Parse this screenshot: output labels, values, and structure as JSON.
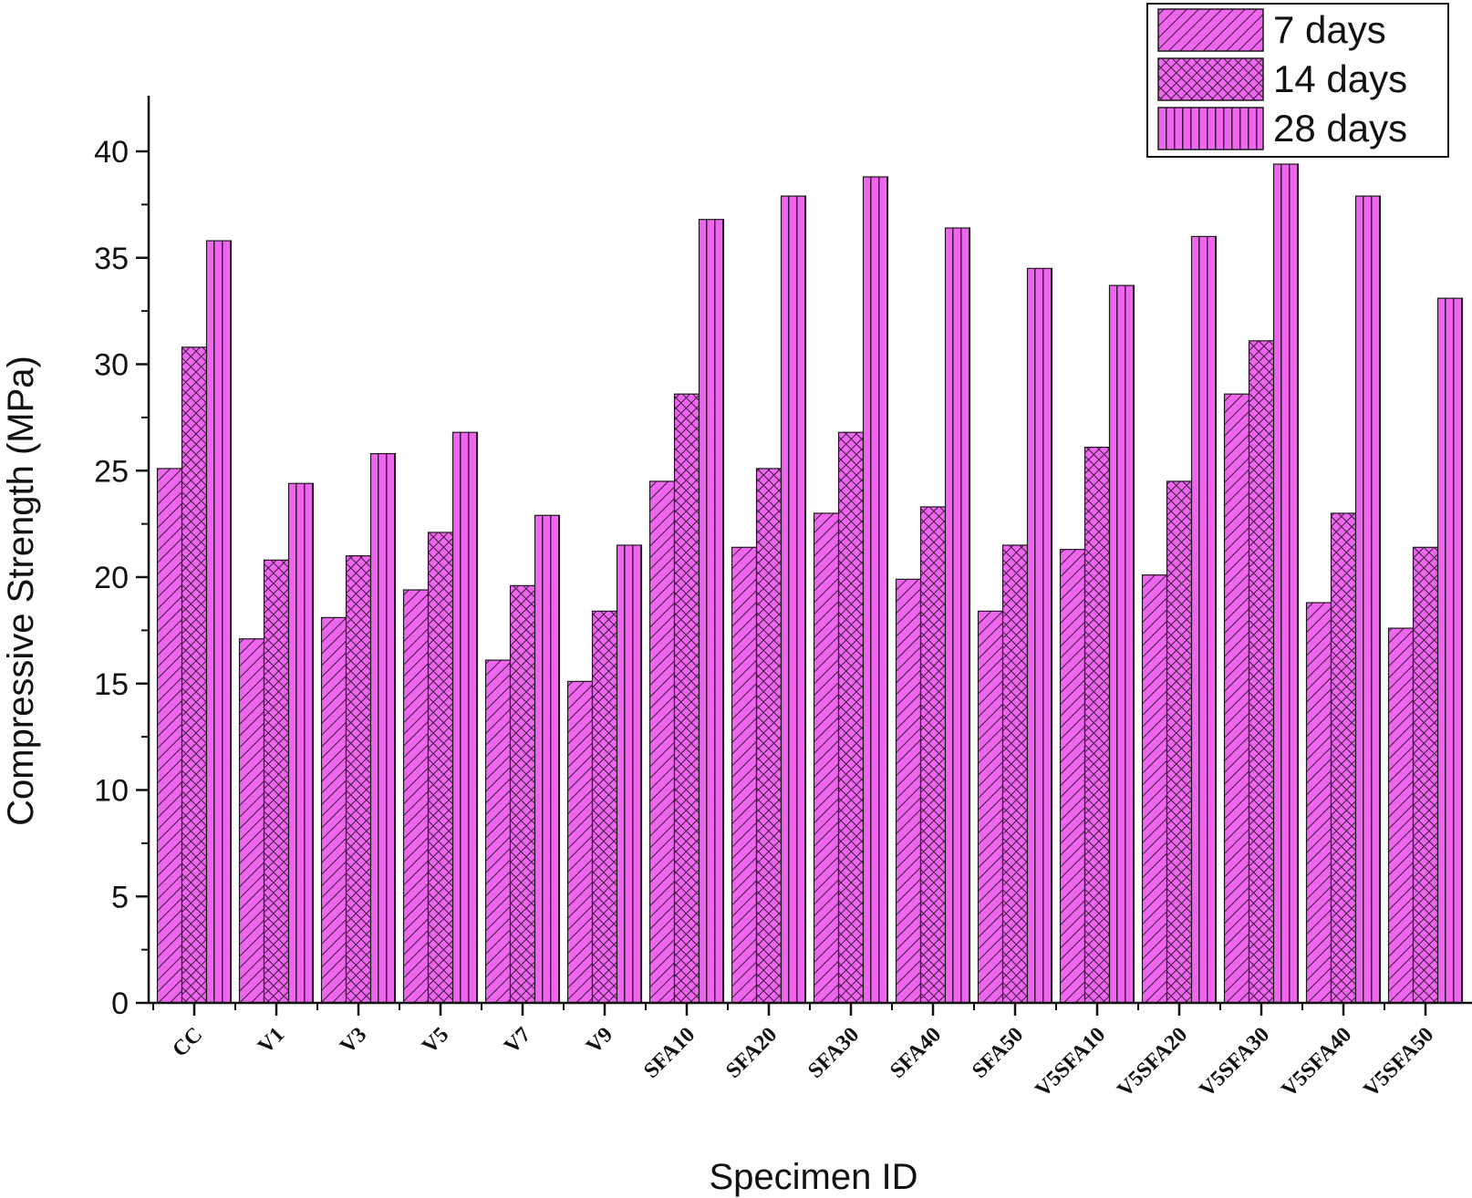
{
  "chart_data": {
    "type": "bar",
    "xlabel": "Specimen ID",
    "ylabel": "Compressive Strength (MPa)",
    "ylim": [
      0,
      42.5
    ],
    "yticks": [
      0,
      5,
      10,
      15,
      20,
      25,
      30,
      35,
      40
    ],
    "grid": false,
    "legend_position": "top-right",
    "categories": [
      "CC",
      "V1",
      "V3",
      "V5",
      "V7",
      "V9",
      "SFA10",
      "SFA20",
      "SFA30",
      "SFA40",
      "SFA50",
      "V5SFA10",
      "V5SFA20",
      "V5SFA30",
      "V5SFA40",
      "V5SFA50"
    ],
    "series": [
      {
        "name": "7 days",
        "pattern": "diagonal-hatch",
        "color": "#ee66ee",
        "values": [
          25.1,
          17.1,
          18.1,
          19.4,
          16.1,
          15.1,
          24.5,
          21.4,
          23.0,
          19.9,
          18.4,
          21.3,
          20.1,
          28.6,
          18.8,
          17.6
        ]
      },
      {
        "name": "14 days",
        "pattern": "crosshatch",
        "color": "#ee66ee",
        "values": [
          30.8,
          20.8,
          21.0,
          22.1,
          19.6,
          18.4,
          28.6,
          25.1,
          26.8,
          23.3,
          21.5,
          26.1,
          24.5,
          31.1,
          23.0,
          21.4
        ]
      },
      {
        "name": "28 days",
        "pattern": "vertical-lines",
        "color": "#ee66ee",
        "values": [
          35.8,
          24.4,
          25.8,
          26.8,
          22.9,
          21.5,
          36.8,
          37.9,
          38.8,
          36.4,
          34.5,
          33.7,
          36.0,
          39.4,
          37.9,
          33.1
        ]
      }
    ]
  },
  "colors": {
    "bar_fill": "#ee66ee",
    "hatch": "#3a1a3a",
    "axis": "#111111"
  }
}
